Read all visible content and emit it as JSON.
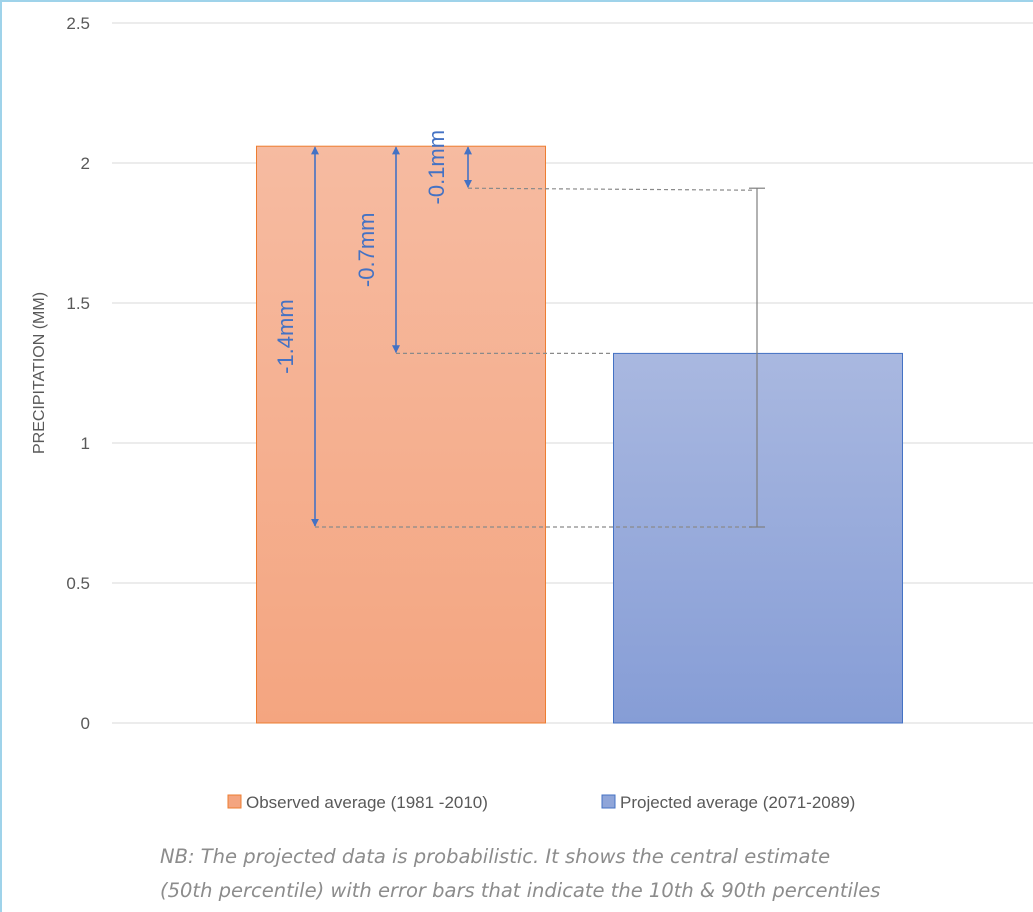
{
  "colors": {
    "observed_fill_top": "#f6bba1",
    "observed_fill_bottom": "#f4a580",
    "observed_stroke": "#ed7d31",
    "projected_fill_top": "#a9b8e0",
    "projected_fill_bottom": "#869dd6",
    "projected_stroke": "#4472c4",
    "annotation": "#4472c4",
    "grid": "#d9d9d9",
    "error_bar": "#7f7f7f"
  },
  "chart_data": {
    "type": "bar",
    "categories": [
      "Observed average (1981 -2010)",
      "Projected average (2071-2089)"
    ],
    "values": [
      2.06,
      1.32
    ],
    "error_bar": {
      "category": "Projected average (2071-2089)",
      "low": 0.7,
      "high": 1.91,
      "low_label": "10th percentile",
      "high_label": "90th percentile"
    },
    "ylabel": "PRECIPITATION (MM)",
    "ylim": [
      0,
      2.5
    ],
    "yticks": [
      0,
      0.5,
      1,
      1.5,
      2,
      2.5
    ],
    "ytick_labels": [
      "0",
      "0.5",
      "1",
      "1.5",
      "2",
      "2.5"
    ],
    "grid": true,
    "legend": {
      "position": "bottom",
      "entries": [
        {
          "label": "Observed average (1981 -2010)",
          "color": "#f4a580"
        },
        {
          "label": "Projected average (2071-2089)",
          "color": "#8fa5d9"
        }
      ]
    },
    "annotations": [
      {
        "label": "-0.1mm",
        "from": 2.06,
        "to": 1.91
      },
      {
        "label": "-0.7mm",
        "from": 2.06,
        "to": 1.32
      },
      {
        "label": "-1.4mm",
        "from": 2.06,
        "to": 0.7
      }
    ]
  },
  "footnote": {
    "line1": "NB: The projected data is probabilistic. It shows the central estimate",
    "line2": "(50th percentile) with error bars that indicate the 10th & 90th percentiles"
  }
}
